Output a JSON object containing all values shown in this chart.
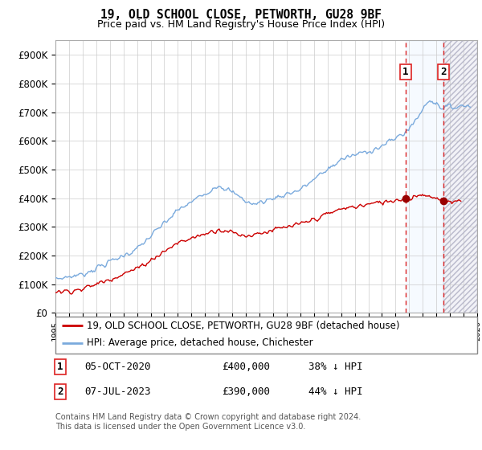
{
  "title": "19, OLD SCHOOL CLOSE, PETWORTH, GU28 9BF",
  "subtitle": "Price paid vs. HM Land Registry's House Price Index (HPI)",
  "footer": "Contains HM Land Registry data © Crown copyright and database right 2024.\nThis data is licensed under the Open Government Licence v3.0.",
  "legend_line1": "19, OLD SCHOOL CLOSE, PETWORTH, GU28 9BF (detached house)",
  "legend_line2": "HPI: Average price, detached house, Chichester",
  "sale1_date": "05-OCT-2020",
  "sale1_price": "£400,000",
  "sale1_hpi": "38% ↓ HPI",
  "sale2_date": "07-JUL-2023",
  "sale2_price": "£390,000",
  "sale2_hpi": "44% ↓ HPI",
  "hpi_color": "#7aaadd",
  "price_color": "#cc0000",
  "marker_color": "#990000",
  "dashed_line_color": "#dd2222",
  "shade_color": "#ddeeff",
  "ylim": [
    0,
    950000
  ],
  "yticks": [
    0,
    100000,
    200000,
    300000,
    400000,
    500000,
    600000,
    700000,
    800000,
    900000
  ],
  "ytick_labels": [
    "£0",
    "£100K",
    "£200K",
    "£300K",
    "£400K",
    "£500K",
    "£600K",
    "£700K",
    "£800K",
    "£900K"
  ],
  "sale1_x": 2020.75,
  "sale1_y": 400000,
  "sale2_x": 2023.5,
  "sale2_y": 390000,
  "xmin": 1995,
  "xmax": 2026
}
